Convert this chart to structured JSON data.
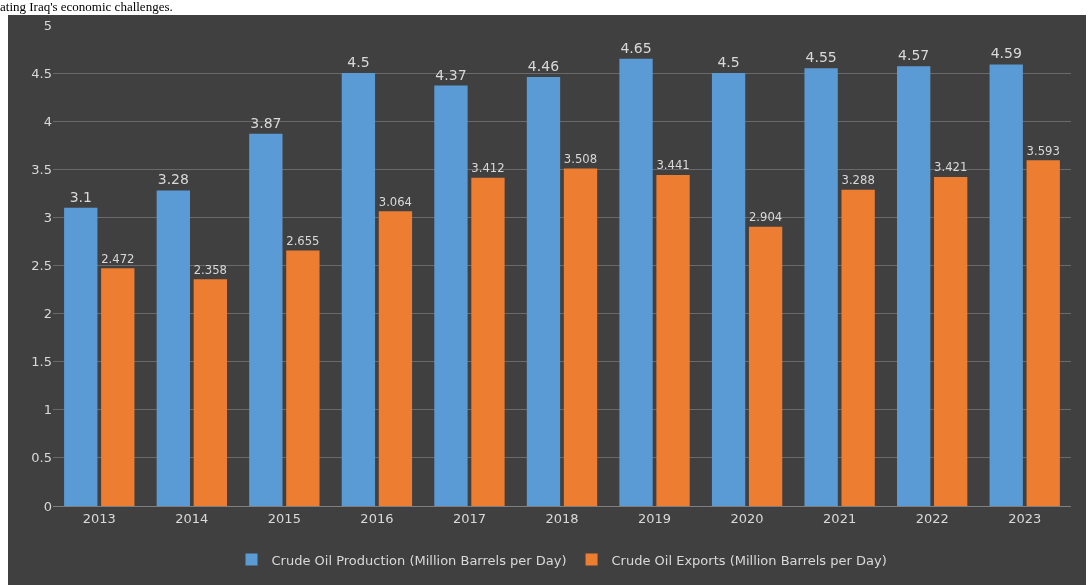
{
  "chart_data": {
    "type": "bar",
    "categories": [
      "2013",
      "2014",
      "2015",
      "2016",
      "2017",
      "2018",
      "2019",
      "2020",
      "2021",
      "2022",
      "2023"
    ],
    "series": [
      {
        "name": "Crude Oil Production (Million Barrels per Day)",
        "color": "#5b9bd5",
        "values": [
          3.1,
          3.28,
          3.87,
          4.5,
          4.37,
          4.46,
          4.65,
          4.5,
          4.55,
          4.57,
          4.59
        ]
      },
      {
        "name": "Crude Oil Exports (Million Barrels per Day)",
        "color": "#ed7d31",
        "values": [
          2.472,
          2.358,
          2.655,
          3.064,
          3.412,
          3.508,
          3.441,
          2.904,
          3.288,
          3.421,
          3.593
        ]
      }
    ],
    "ylim": [
      0,
      5
    ],
    "yticks": [
      0,
      0.5,
      1,
      1.5,
      2,
      2.5,
      3,
      3.5,
      4,
      4.5,
      5
    ],
    "grid": "y",
    "legend": "bottom",
    "data_labels": true,
    "annotations": [
      "ating Iraq's economic challenges."
    ]
  }
}
